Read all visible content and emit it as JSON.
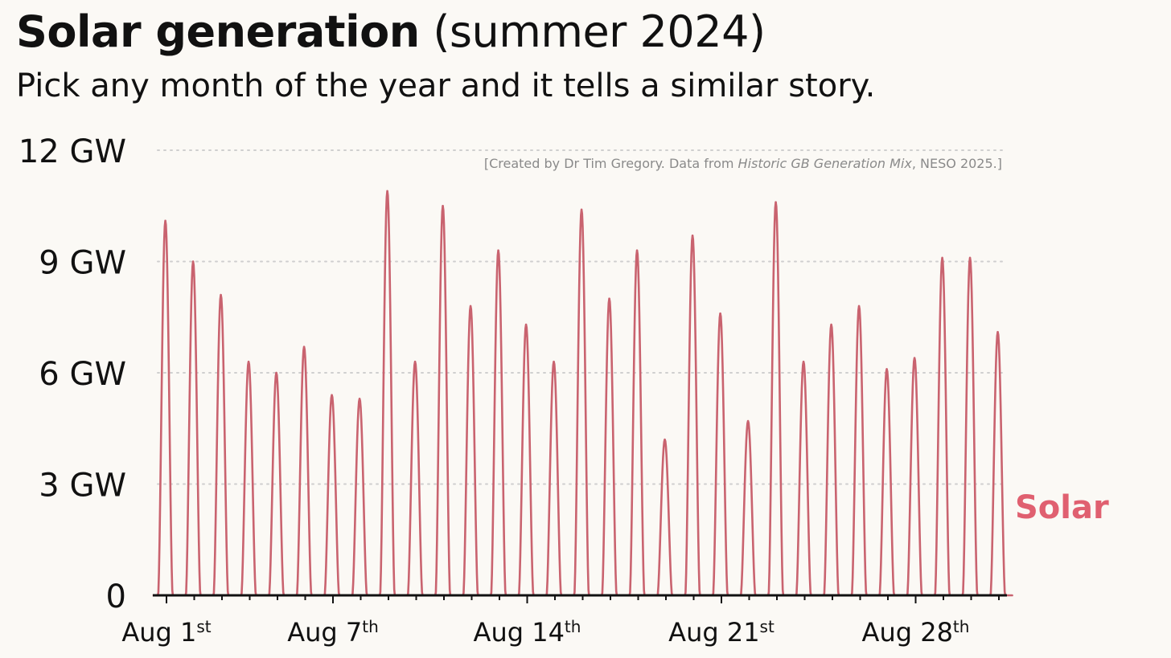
{
  "header": {
    "title_bold": "Solar generation",
    "title_rest": " (summer 2024)",
    "subtitle": "Pick any month of the year and it tells a similar story."
  },
  "credit": {
    "before": "[Created by Dr Tim Gregory. Data from ",
    "source": "Historic GB Generation Mix",
    "after": ", NESO 2025.]"
  },
  "colors": {
    "solar": "#c9636f",
    "solar_label": "#e06070",
    "grid": "#cfcfcf",
    "axis": "#111111"
  },
  "chart_data": {
    "type": "line",
    "title": "Solar generation (summer 2024)",
    "subtitle": "Pick any month of the year and it tells a similar story.",
    "xlabel": "",
    "ylabel": "",
    "ylim": [
      0,
      12
    ],
    "yticks": [
      {
        "value": 0,
        "label": "0"
      },
      {
        "value": 3,
        "label": "3 GW"
      },
      {
        "value": 6,
        "label": "6 GW"
      },
      {
        "value": 9,
        "label": "9 GW"
      },
      {
        "value": 12,
        "label": "12 GW"
      }
    ],
    "xticks": [
      {
        "day": 1,
        "label": "Aug 1",
        "suffix": "st"
      },
      {
        "day": 7,
        "label": "Aug 7",
        "suffix": "th"
      },
      {
        "day": 14,
        "label": "Aug 14",
        "suffix": "th"
      },
      {
        "day": 21,
        "label": "Aug 21",
        "suffix": "st"
      },
      {
        "day": 28,
        "label": "Aug 28",
        "suffix": "th"
      }
    ],
    "grid": "horizontal dotted",
    "series": [
      {
        "name": "Solar",
        "unit": "GW",
        "days": [
          1,
          2,
          3,
          4,
          5,
          6,
          7,
          8,
          9,
          10,
          11,
          12,
          13,
          14,
          15,
          16,
          17,
          18,
          19,
          20,
          21,
          22,
          23,
          24,
          25,
          26,
          27,
          28,
          29,
          30,
          31
        ],
        "daily_peak_gw": [
          10.1,
          9.0,
          8.1,
          6.3,
          6.0,
          6.7,
          5.4,
          5.3,
          10.9,
          6.3,
          10.5,
          7.8,
          9.3,
          7.3,
          6.3,
          10.4,
          8.0,
          9.3,
          4.2,
          9.7,
          7.6,
          4.7,
          10.6,
          6.3,
          7.3,
          7.8,
          6.1,
          6.4,
          9.1,
          9.1,
          7.1
        ]
      }
    ]
  }
}
